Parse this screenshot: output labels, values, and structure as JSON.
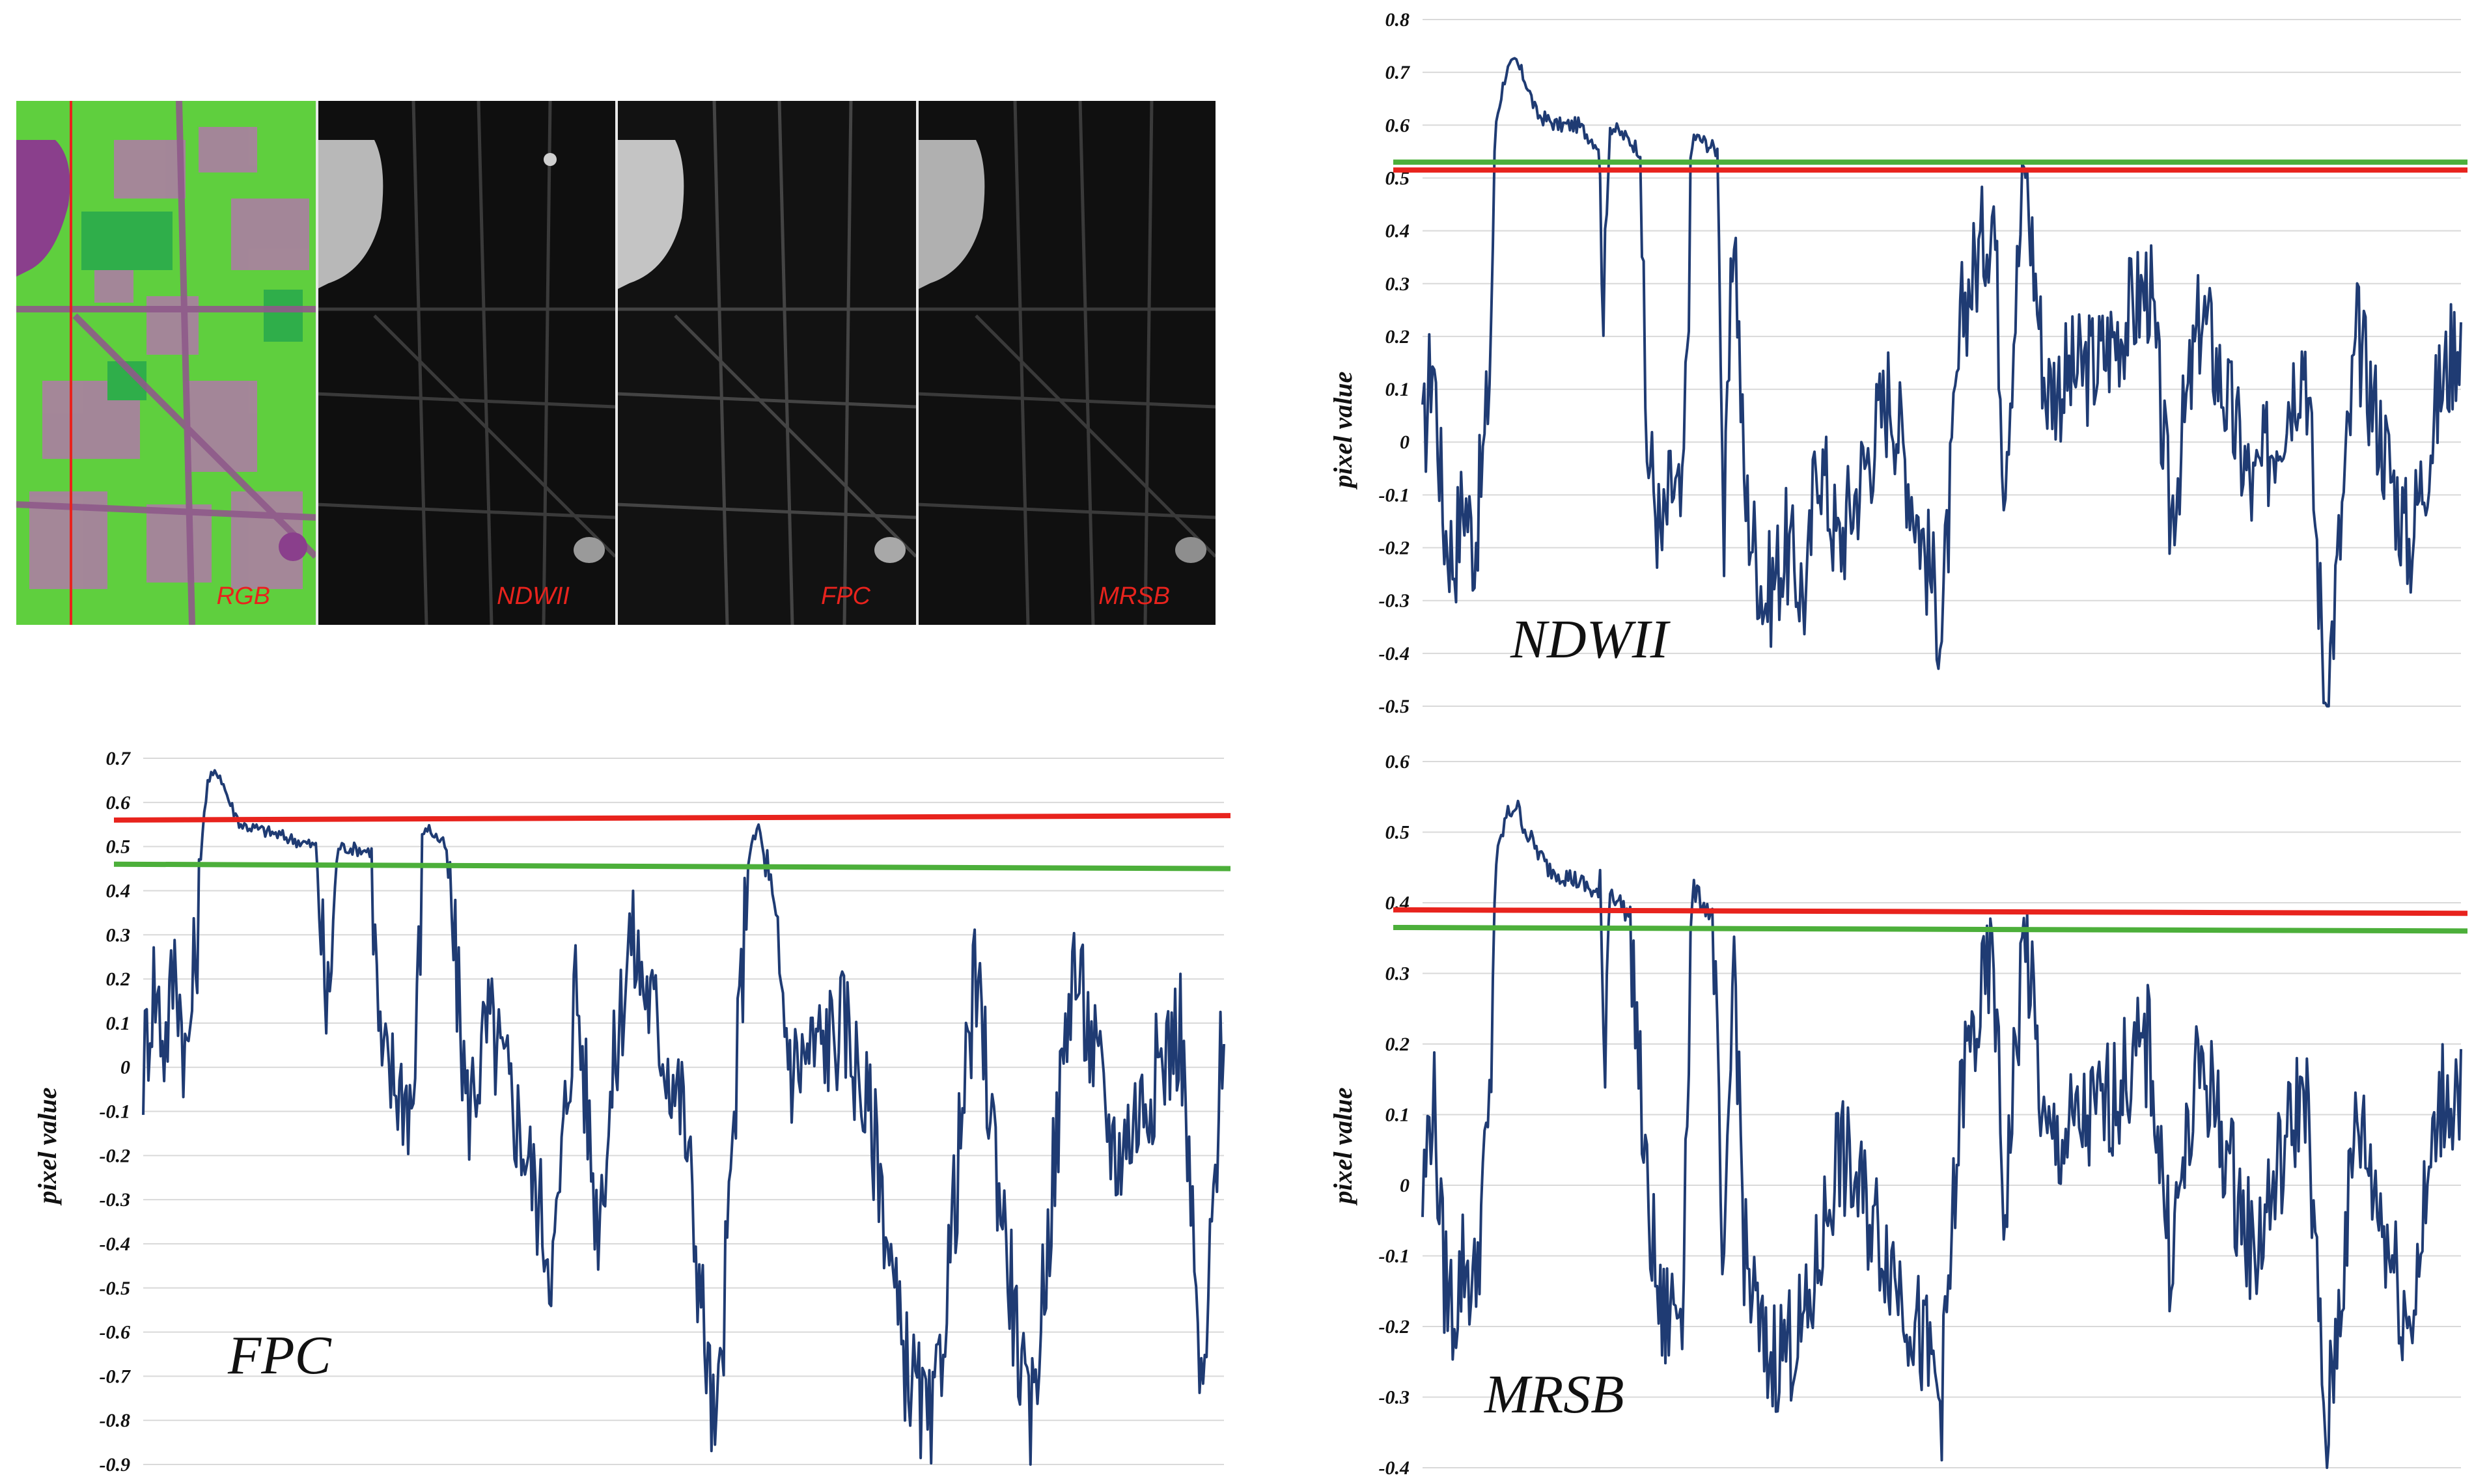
{
  "figure": {
    "panels": [
      {
        "label": "RGB",
        "kind": "rgb"
      },
      {
        "label": "NDWII",
        "kind": "gray"
      },
      {
        "label": "FPC",
        "kind": "gray"
      },
      {
        "label": "MRSB",
        "kind": "gray"
      }
    ],
    "profile_line_color": "#e8231d"
  },
  "chart_data": [
    {
      "type": "line",
      "title": "NDWII",
      "ylabel": "pixel value",
      "xlabel": "",
      "ylim": [
        -0.5,
        0.8
      ],
      "yticks": [
        "0.8",
        "0.7",
        "0.6",
        "0.5",
        "0.4",
        "0.3",
        "0.2",
        "0.1",
        "0",
        "-0.1",
        "-0.2",
        "-0.3",
        "-0.4",
        "-0.5"
      ],
      "threshold_lines": [
        {
          "color": "#e8231d",
          "y_start": 0.515,
          "y_end": 0.515
        },
        {
          "color": "#4caf3a",
          "y_start": 0.53,
          "y_end": 0.53
        }
      ],
      "line_color": "#1f3b73",
      "series_keypoints": [
        [
          0,
          -0.02
        ],
        [
          0.01,
          0.18
        ],
        [
          0.02,
          -0.15
        ],
        [
          0.03,
          -0.22
        ],
        [
          0.04,
          -0.1
        ],
        [
          0.05,
          -0.2
        ],
        [
          0.06,
          0.0
        ],
        [
          0.065,
          0.15
        ],
        [
          0.07,
          0.6
        ],
        [
          0.08,
          0.7
        ],
        [
          0.09,
          0.72
        ],
        [
          0.1,
          0.68
        ],
        [
          0.11,
          0.62
        ],
        [
          0.13,
          0.6
        ],
        [
          0.15,
          0.6
        ],
        [
          0.17,
          0.56
        ],
        [
          0.175,
          0.24
        ],
        [
          0.18,
          0.6
        ],
        [
          0.2,
          0.57
        ],
        [
          0.21,
          0.55
        ],
        [
          0.215,
          0.0
        ],
        [
          0.22,
          -0.05
        ],
        [
          0.23,
          -0.2
        ],
        [
          0.24,
          -0.08
        ],
        [
          0.25,
          -0.15
        ],
        [
          0.26,
          0.58
        ],
        [
          0.27,
          0.57
        ],
        [
          0.285,
          0.55
        ],
        [
          0.29,
          -0.22
        ],
        [
          0.3,
          0.45
        ],
        [
          0.31,
          -0.1
        ],
        [
          0.33,
          -0.3
        ],
        [
          0.35,
          -0.2
        ],
        [
          0.37,
          -0.3
        ],
        [
          0.38,
          0.0
        ],
        [
          0.4,
          -0.2
        ],
        [
          0.45,
          0.1
        ],
        [
          0.5,
          -0.35
        ],
        [
          0.52,
          0.25
        ],
        [
          0.55,
          0.45
        ],
        [
          0.56,
          -0.05
        ],
        [
          0.58,
          0.52
        ],
        [
          0.6,
          0.1
        ],
        [
          0.65,
          0.15
        ],
        [
          0.7,
          0.3
        ],
        [
          0.72,
          -0.15
        ],
        [
          0.75,
          0.25
        ],
        [
          0.8,
          -0.1
        ],
        [
          0.85,
          0.18
        ],
        [
          0.87,
          -0.5
        ],
        [
          0.9,
          0.2
        ],
        [
          0.95,
          -0.2
        ],
        [
          0.98,
          0.1
        ],
        [
          1.0,
          0.22
        ]
      ]
    },
    {
      "type": "line",
      "title": "FPC",
      "ylabel": "pixel value",
      "xlabel": "",
      "ylim": [
        -0.9,
        0.7
      ],
      "yticks": [
        "0.7",
        "0.6",
        "0.5",
        "0.4",
        "0.3",
        "0.2",
        "0.1",
        "0",
        "-0.1",
        "-0.2",
        "-0.3",
        "-0.4",
        "-0.5",
        "-0.6",
        "-0.7",
        "-0.8",
        "-0.9"
      ],
      "threshold_lines": [
        {
          "color": "#e8231d",
          "y_start": 0.56,
          "y_end": 0.57
        },
        {
          "color": "#4caf3a",
          "y_start": 0.46,
          "y_end": 0.45
        }
      ],
      "line_color": "#1f3b73",
      "series_keypoints": [
        [
          0,
          0.0
        ],
        [
          0.01,
          0.2
        ],
        [
          0.02,
          0.05
        ],
        [
          0.03,
          0.25
        ],
        [
          0.04,
          0.0
        ],
        [
          0.05,
          0.3
        ],
        [
          0.055,
          0.55
        ],
        [
          0.06,
          0.65
        ],
        [
          0.07,
          0.67
        ],
        [
          0.08,
          0.6
        ],
        [
          0.09,
          0.55
        ],
        [
          0.12,
          0.53
        ],
        [
          0.16,
          0.5
        ],
        [
          0.17,
          0.1
        ],
        [
          0.18,
          0.5
        ],
        [
          0.21,
          0.49
        ],
        [
          0.22,
          0.0
        ],
        [
          0.24,
          -0.05
        ],
        [
          0.25,
          -0.08
        ],
        [
          0.26,
          0.55
        ],
        [
          0.28,
          0.5
        ],
        [
          0.3,
          -0.1
        ],
        [
          0.32,
          0.1
        ],
        [
          0.35,
          -0.15
        ],
        [
          0.38,
          -0.45
        ],
        [
          0.4,
          0.2
        ],
        [
          0.42,
          -0.35
        ],
        [
          0.45,
          0.3
        ],
        [
          0.5,
          -0.1
        ],
        [
          0.53,
          -0.88
        ],
        [
          0.56,
          0.48
        ],
        [
          0.57,
          0.55
        ],
        [
          0.6,
          0.0
        ],
        [
          0.65,
          0.1
        ],
        [
          0.68,
          -0.2
        ],
        [
          0.7,
          -0.62
        ],
        [
          0.73,
          -0.85
        ],
        [
          0.77,
          0.2
        ],
        [
          0.82,
          -0.85
        ],
        [
          0.86,
          0.25
        ],
        [
          0.9,
          -0.2
        ],
        [
          0.96,
          0.1
        ],
        [
          0.98,
          -0.8
        ],
        [
          1.0,
          0.15
        ]
      ]
    },
    {
      "type": "line",
      "title": "MRSB",
      "ylabel": "pixel value",
      "xlabel": "",
      "ylim": [
        -0.4,
        0.6
      ],
      "yticks": [
        "0.6",
        "0.5",
        "0.4",
        "0.3",
        "0.2",
        "0.1",
        "0",
        "-0.1",
        "-0.2",
        "-0.3",
        "-0.4"
      ],
      "threshold_lines": [
        {
          "color": "#e8231d",
          "y_start": 0.39,
          "y_end": 0.385
        },
        {
          "color": "#4caf3a",
          "y_start": 0.365,
          "y_end": 0.36
        }
      ],
      "line_color": "#1f3b73",
      "series_keypoints": [
        [
          0,
          -0.02
        ],
        [
          0.01,
          0.14
        ],
        [
          0.02,
          -0.12
        ],
        [
          0.03,
          -0.18
        ],
        [
          0.04,
          -0.1
        ],
        [
          0.05,
          -0.15
        ],
        [
          0.06,
          0.02
        ],
        [
          0.065,
          0.1
        ],
        [
          0.07,
          0.45
        ],
        [
          0.08,
          0.52
        ],
        [
          0.09,
          0.54
        ],
        [
          0.1,
          0.5
        ],
        [
          0.12,
          0.45
        ],
        [
          0.15,
          0.43
        ],
        [
          0.17,
          0.41
        ],
        [
          0.175,
          0.18
        ],
        [
          0.18,
          0.42
        ],
        [
          0.2,
          0.38
        ],
        [
          0.215,
          0.0
        ],
        [
          0.23,
          -0.2
        ],
        [
          0.25,
          -0.15
        ],
        [
          0.26,
          0.42
        ],
        [
          0.28,
          0.38
        ],
        [
          0.29,
          -0.2
        ],
        [
          0.3,
          0.35
        ],
        [
          0.31,
          -0.1
        ],
        [
          0.33,
          -0.25
        ],
        [
          0.37,
          -0.2
        ],
        [
          0.4,
          0.05
        ],
        [
          0.45,
          -0.1
        ],
        [
          0.5,
          -0.3
        ],
        [
          0.52,
          0.15
        ],
        [
          0.55,
          0.32
        ],
        [
          0.56,
          -0.05
        ],
        [
          0.58,
          0.37
        ],
        [
          0.6,
          0.05
        ],
        [
          0.65,
          0.1
        ],
        [
          0.7,
          0.2
        ],
        [
          0.72,
          -0.1
        ],
        [
          0.75,
          0.18
        ],
        [
          0.8,
          -0.1
        ],
        [
          0.85,
          0.15
        ],
        [
          0.87,
          -0.37
        ],
        [
          0.9,
          0.1
        ],
        [
          0.95,
          -0.2
        ],
        [
          0.98,
          0.12
        ],
        [
          1.0,
          0.14
        ]
      ]
    }
  ]
}
